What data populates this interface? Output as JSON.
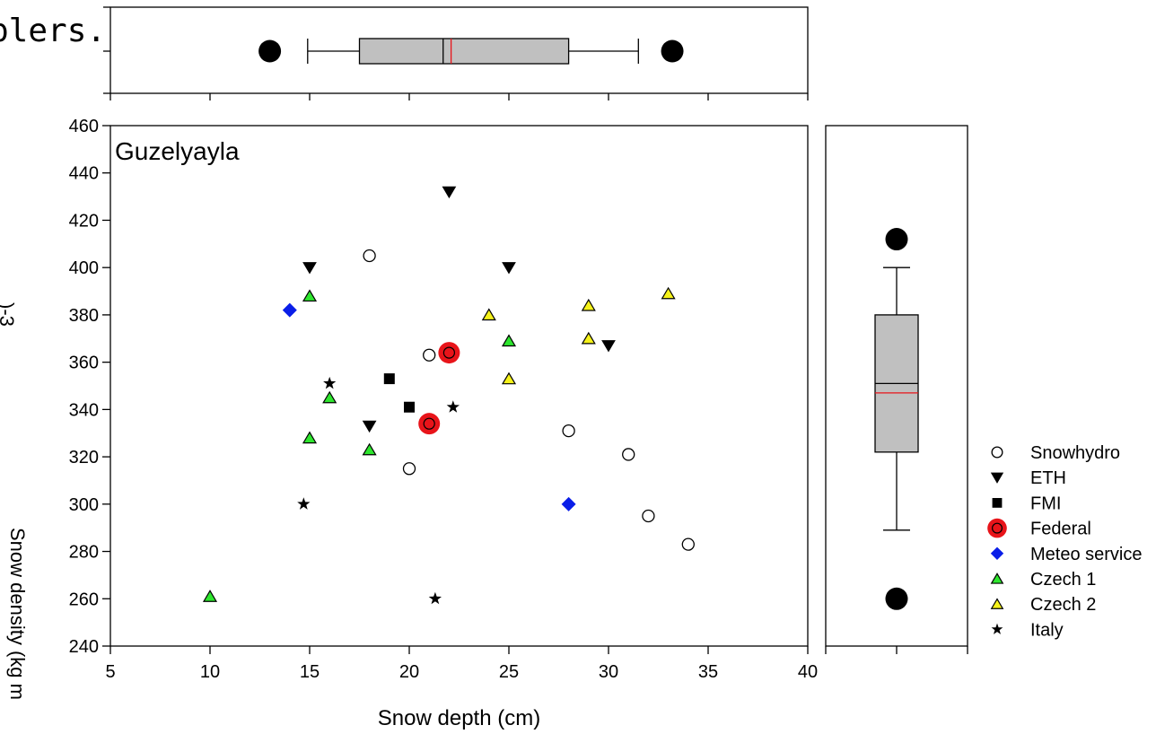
{
  "page": {
    "clipped_caption_text": "plers.",
    "clipped_ylabel_fragment": ")-3",
    "clipped_ylabel_text": "Snow density (kg m"
  },
  "chart_data": [
    {
      "type": "scatter",
      "panel": "main",
      "title": "Guzelyayla",
      "xlabel": "Snow depth (cm)",
      "ylabel": "Snow density (kg m-3)",
      "xlim": [
        5,
        40
      ],
      "ylim": [
        240,
        460
      ],
      "xticks": [
        5,
        10,
        15,
        20,
        25,
        30,
        35,
        40
      ],
      "yticks": [
        240,
        260,
        280,
        300,
        320,
        340,
        360,
        380,
        400,
        420,
        440,
        460
      ],
      "grid": false,
      "legend_position": "right",
      "series": [
        {
          "name": "Snowhydro",
          "marker": "circle-open",
          "color": "#ffffff",
          "points": [
            [
              18,
              405
            ],
            [
              21,
              363
            ],
            [
              20,
              315
            ],
            [
              28,
              331
            ],
            [
              31,
              321
            ],
            [
              32,
              295
            ],
            [
              34,
              283
            ]
          ]
        },
        {
          "name": "ETH",
          "marker": "triangle-down",
          "color": "#000000",
          "points": [
            [
              15,
              400
            ],
            [
              22,
              432
            ],
            [
              25,
              400
            ],
            [
              30,
              367
            ],
            [
              18,
              333
            ]
          ]
        },
        {
          "name": "FMI",
          "marker": "square",
          "color": "#000000",
          "points": [
            [
              19,
              353
            ],
            [
              20,
              341
            ]
          ]
        },
        {
          "name": "Federal",
          "marker": "circle-double",
          "color": "#e8141a",
          "points": [
            [
              22,
              364
            ],
            [
              21,
              334
            ]
          ]
        },
        {
          "name": "Meteo service",
          "marker": "diamond",
          "color": "#0a1ee8",
          "points": [
            [
              14,
              382
            ],
            [
              28,
              300
            ]
          ]
        },
        {
          "name": "Czech 1",
          "marker": "triangle-up",
          "color": "#2ee62e",
          "points": [
            [
              15,
              388
            ],
            [
              16,
              345
            ],
            [
              15,
              328
            ],
            [
              18,
              323
            ],
            [
              25,
              369
            ],
            [
              10,
              261
            ]
          ]
        },
        {
          "name": "Czech 2",
          "marker": "triangle-up",
          "color": "#f5f21a",
          "points": [
            [
              24,
              380
            ],
            [
              29,
              384
            ],
            [
              29,
              370
            ],
            [
              25,
              353
            ],
            [
              33,
              389
            ]
          ]
        },
        {
          "name": "Italy",
          "marker": "star",
          "color": "#000000",
          "points": [
            [
              16,
              351
            ],
            [
              22.2,
              341
            ],
            [
              14.7,
              300
            ],
            [
              21.3,
              260
            ]
          ]
        }
      ]
    },
    {
      "type": "box",
      "panel": "top",
      "orientation": "horizontal",
      "variable": "Snow depth (cm)",
      "xlim": [
        5,
        40
      ],
      "whisker_low": 14.9,
      "q1": 17.5,
      "median": 21.7,
      "mean": 22.1,
      "q3": 28,
      "whisker_high": 31.5,
      "outliers": [
        13,
        33.2
      ]
    },
    {
      "type": "box",
      "panel": "right",
      "orientation": "vertical",
      "variable": "Snow density (kg m-3)",
      "ylim": [
        240,
        460
      ],
      "whisker_low": 289,
      "q1": 322,
      "median": 351,
      "mean": 347,
      "q3": 380,
      "whisker_high": 400,
      "outliers": [
        412,
        260
      ]
    }
  ]
}
